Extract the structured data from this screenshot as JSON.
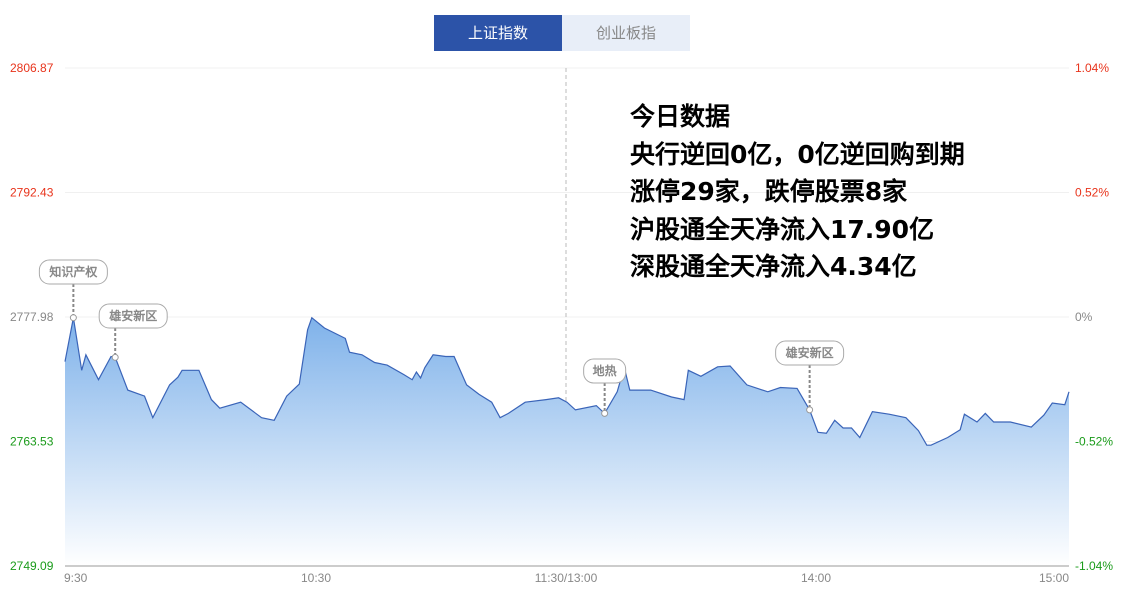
{
  "tabs": [
    {
      "label": "上证指数",
      "active": true
    },
    {
      "label": "创业板指",
      "active": false
    }
  ],
  "info": {
    "title": "今日数据",
    "lines": [
      "央行逆回0亿，0亿逆回购到期",
      "涨停29家，跌停股票8家",
      "沪股通全天净流入17.90亿",
      "深股通全天净流入4.34亿"
    ]
  },
  "colors": {
    "up": "#e8341c",
    "down": "#1a9b1a",
    "flat": "#888888",
    "line": "#3a64b8",
    "fill_top": "#7fb2ea",
    "fill_bottom": "#ffffff"
  },
  "chart_data": {
    "type": "area",
    "ylim": [
      2749.09,
      2806.87
    ],
    "left_ticks": [
      "2806.87",
      "2792.43",
      "2777.98",
      "2763.53",
      "2749.09"
    ],
    "right_ticks": [
      "1.04%",
      "0.52%",
      "0%",
      "-0.52%",
      "-1.04%"
    ],
    "x_ticks": [
      "9:30",
      "10:30",
      "11:30/13:00",
      "14:00",
      "15:00"
    ],
    "grid": true,
    "points": [
      [
        "9:30",
        2772.8
      ],
      [
        "9:32",
        2777.9
      ],
      [
        "9:34",
        2771.8
      ],
      [
        "9:35",
        2773.6
      ],
      [
        "9:38",
        2770.7
      ],
      [
        "9:41",
        2773.4
      ],
      [
        "9:42",
        2773.3
      ],
      [
        "9:45",
        2769.5
      ],
      [
        "9:49",
        2768.8
      ],
      [
        "9:51",
        2766.3
      ],
      [
        "9:55",
        2770.1
      ],
      [
        "9:57",
        2771.0
      ],
      [
        "9:58",
        2771.8
      ],
      [
        "10:02",
        2771.8
      ],
      [
        "10:05",
        2768.4
      ],
      [
        "10:07",
        2767.4
      ],
      [
        "10:12",
        2768.1
      ],
      [
        "10:17",
        2766.3
      ],
      [
        "10:20",
        2766.0
      ],
      [
        "10:23",
        2768.8
      ],
      [
        "10:26",
        2770.2
      ],
      [
        "10:28",
        2776.5
      ],
      [
        "10:29",
        2777.9
      ],
      [
        "10:32",
        2776.7
      ],
      [
        "10:37",
        2775.5
      ],
      [
        "10:38",
        2773.9
      ],
      [
        "10:41",
        2773.6
      ],
      [
        "10:44",
        2772.7
      ],
      [
        "10:47",
        2772.4
      ],
      [
        "10:51",
        2771.3
      ],
      [
        "10:53",
        2770.7
      ],
      [
        "10:54",
        2771.6
      ],
      [
        "10:55",
        2770.9
      ],
      [
        "10:56",
        2772.1
      ],
      [
        "10:58",
        2773.6
      ],
      [
        "11:01",
        2773.4
      ],
      [
        "11:03",
        2773.4
      ],
      [
        "11:06",
        2770.1
      ],
      [
        "11:09",
        2769.0
      ],
      [
        "11:12",
        2768.1
      ],
      [
        "11:14",
        2766.3
      ],
      [
        "11:16",
        2766.8
      ],
      [
        "11:20",
        2768.1
      ],
      [
        "11:25",
        2768.4
      ],
      [
        "11:28",
        2768.6
      ],
      [
        "11:30",
        2768.1
      ],
      [
        "13:02",
        2767.2
      ],
      [
        "13:07",
        2767.7
      ],
      [
        "13:09",
        2766.8
      ],
      [
        "13:12",
        2769.3
      ],
      [
        "13:13",
        2771.0
      ],
      [
        "13:14",
        2771.5
      ],
      [
        "13:15",
        2769.5
      ],
      [
        "13:20",
        2769.5
      ],
      [
        "13:25",
        2768.7
      ],
      [
        "13:28",
        2768.4
      ],
      [
        "13:29",
        2771.8
      ],
      [
        "13:32",
        2771.1
      ],
      [
        "13:36",
        2772.2
      ],
      [
        "13:39",
        2772.3
      ],
      [
        "13:43",
        2770.1
      ],
      [
        "13:48",
        2769.3
      ],
      [
        "13:51",
        2769.8
      ],
      [
        "13:55",
        2769.7
      ],
      [
        "13:58",
        2767.2
      ],
      [
        "14:00",
        2764.6
      ],
      [
        "14:02",
        2764.5
      ],
      [
        "14:04",
        2766.0
      ],
      [
        "14:06",
        2765.1
      ],
      [
        "14:08",
        2765.1
      ],
      [
        "14:10",
        2764.0
      ],
      [
        "14:12",
        2766.0
      ],
      [
        "14:13",
        2767.0
      ],
      [
        "14:17",
        2766.7
      ],
      [
        "14:21",
        2766.3
      ],
      [
        "14:24",
        2764.8
      ],
      [
        "14:26",
        2763.1
      ],
      [
        "14:27",
        2763.1
      ],
      [
        "14:31",
        2764.0
      ],
      [
        "14:34",
        2764.9
      ],
      [
        "14:35",
        2766.7
      ],
      [
        "14:38",
        2765.8
      ],
      [
        "14:40",
        2766.8
      ],
      [
        "14:42",
        2765.8
      ],
      [
        "14:46",
        2765.8
      ],
      [
        "14:51",
        2765.2
      ],
      [
        "14:54",
        2766.6
      ],
      [
        "14:56",
        2768.0
      ],
      [
        "14:59",
        2767.8
      ],
      [
        "15:00",
        2769.3
      ]
    ],
    "annotations": [
      {
        "time": "9:32",
        "label": "知识产权"
      },
      {
        "time": "9:42",
        "label": "雄安新区"
      },
      {
        "time": "13:09",
        "label": "地热"
      },
      {
        "time": "13:58",
        "label": "雄安新区"
      }
    ]
  }
}
